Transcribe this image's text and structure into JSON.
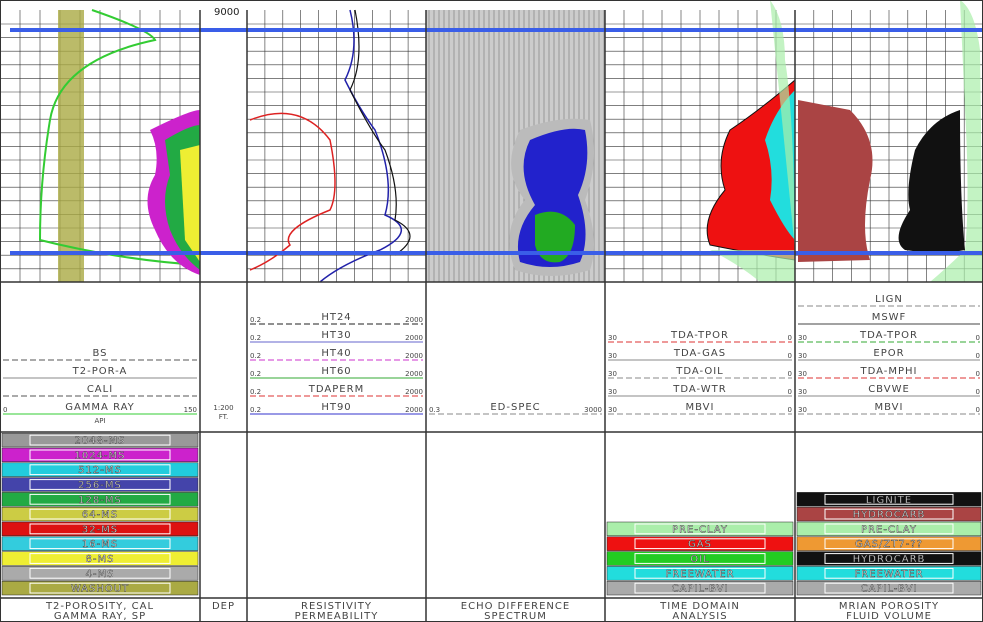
{
  "depth_label": "9000",
  "tracks": [
    {
      "title": [
        "T2-POROSITY, CAL",
        "GAMMA RAY, SP"
      ],
      "curves": [
        {
          "name": "BS",
          "color": "#555"
        },
        {
          "name": "T2-POR-A",
          "color": "#888"
        },
        {
          "name": "CALI",
          "color": "#555"
        },
        {
          "name": "GAMMA RAY",
          "color": "#3c3",
          "left": "0",
          "right": "150",
          "unit": "API"
        }
      ],
      "legend": [
        {
          "label": "2048-MS",
          "color": "#999"
        },
        {
          "label": "1024-MS",
          "color": "#c2c"
        },
        {
          "label": "512-MS",
          "color": "#2cd"
        },
        {
          "label": "256-MS",
          "color": "#44a"
        },
        {
          "label": "128-MS",
          "color": "#2a4"
        },
        {
          "label": "64-MS",
          "color": "#cc4"
        },
        {
          "label": "32-MS",
          "color": "#d11"
        },
        {
          "label": "16-MS",
          "color": "#3cd"
        },
        {
          "label": "8-MS",
          "color": "#ee3"
        },
        {
          "label": "4-MS",
          "color": "#aaa"
        },
        {
          "label": "WASHOUT",
          "color": "#aa4"
        }
      ]
    },
    {
      "title": [
        "DEP"
      ],
      "scale": [
        "1:200",
        "FT."
      ]
    },
    {
      "title": [
        "RESISTIVITY",
        "PERMEABILITY"
      ],
      "curves": [
        {
          "name": "HT24",
          "color": "#222",
          "left": "0.2",
          "right": "2000"
        },
        {
          "name": "HT30",
          "color": "#66c",
          "left": "0.2",
          "right": "2000"
        },
        {
          "name": "HT40",
          "color": "#c3c",
          "left": "0.2",
          "right": "2000"
        },
        {
          "name": "HT60",
          "color": "#3a3",
          "left": "0.2",
          "right": "2000"
        },
        {
          "name": "TDAPERM",
          "color": "#d33",
          "left": "0.2",
          "right": "2000"
        },
        {
          "name": "HT90",
          "color": "#33c",
          "left": "0.2",
          "right": "2000"
        }
      ]
    },
    {
      "title": [
        "ECHO DIFFERENCE",
        "SPECTRUM"
      ],
      "curves": [
        {
          "name": "ED-SPEC",
          "color": "#888",
          "left": "0.3",
          "right": "3000"
        }
      ]
    },
    {
      "title": [
        "TIME DOMAIN",
        "ANALYSIS"
      ],
      "curves": [
        {
          "name": "TDA-TPOR",
          "color": "#d33",
          "left": "30",
          "right": "0"
        },
        {
          "name": "TDA-GAS",
          "color": "#888",
          "left": "30",
          "right": "0"
        },
        {
          "name": "TDA-OIL",
          "color": "#888",
          "left": "30",
          "right": "0"
        },
        {
          "name": "TDA-WTR",
          "color": "#888",
          "left": "30",
          "right": "0"
        },
        {
          "name": "MBVI",
          "color": "#888",
          "left": "30",
          "right": "0"
        }
      ],
      "legend": [
        {
          "label": "PRE-CLAY",
          "color": "#aea"
        },
        {
          "label": "GAS",
          "color": "#e11"
        },
        {
          "label": "OIL",
          "color": "#2c2"
        },
        {
          "label": "FREEWATER",
          "color": "#2dd"
        },
        {
          "label": "CAPIL-BVI",
          "color": "#aaa"
        }
      ]
    },
    {
      "title": [
        "MRIAN POROSITY",
        "FLUID VOLUME"
      ],
      "curves": [
        {
          "name": "LIGN",
          "color": "#888"
        },
        {
          "name": "MSWF",
          "color": "#444"
        },
        {
          "name": "TDA-TPOR",
          "color": "#3a3",
          "left": "30",
          "right": "0"
        },
        {
          "name": "EPOR",
          "color": "#888",
          "left": "30",
          "right": "0"
        },
        {
          "name": "TDA-MPHI",
          "color": "#d33",
          "left": "30",
          "right": "0"
        },
        {
          "name": "CBVWE",
          "color": "#888",
          "left": "30",
          "right": "0"
        },
        {
          "name": "MBVI",
          "color": "#888",
          "left": "30",
          "right": "0"
        }
      ],
      "legend": [
        {
          "label": "LIGNITE",
          "color": "#111"
        },
        {
          "label": "HYDROCARB",
          "color": "#a44"
        },
        {
          "label": "PRE-CLAY",
          "color": "#aea"
        },
        {
          "label": "GAS/ZT7-??",
          "color": "#e93"
        },
        {
          "label": "HYDROCARB",
          "color": "#111"
        },
        {
          "label": "FREEWATER",
          "color": "#2dd"
        },
        {
          "label": "CAPIL-BVI",
          "color": "#aaa"
        }
      ]
    }
  ]
}
